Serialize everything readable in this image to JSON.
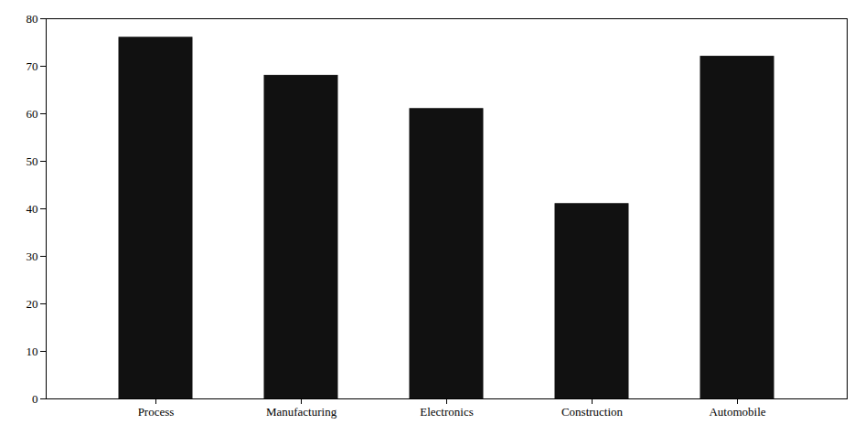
{
  "chart_data": {
    "type": "bar",
    "categories": [
      "Process",
      "Manufacturing",
      "Electronics",
      "Construction",
      "Automobile"
    ],
    "values": [
      76,
      68,
      61,
      41,
      72
    ],
    "color": "#111111",
    "ylim": [
      0,
      80
    ],
    "yticks": [
      0,
      10,
      20,
      30,
      40,
      50,
      60,
      70,
      80
    ]
  }
}
